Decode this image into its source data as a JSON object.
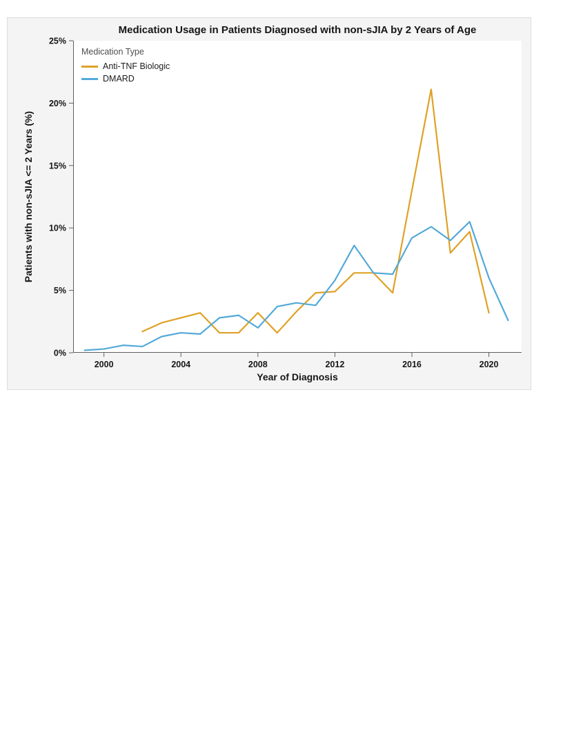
{
  "chart_data": {
    "type": "line",
    "title": "Medication Usage in Patients Diagnosed with non-sJIA by 2 Years of Age",
    "xlabel": "Year of Diagnosis",
    "ylabel": "Patients with non-sJIA <= 2 Years (%)",
    "legend_title": "Medication Type",
    "legend_position": "top-left-inside",
    "grid": false,
    "xlim": [
      1998.4,
      2021.7
    ],
    "ylim": [
      0,
      25
    ],
    "xticks": [
      2000,
      2004,
      2008,
      2012,
      2016,
      2020
    ],
    "yticks": [
      0,
      5,
      10,
      15,
      20,
      25
    ],
    "ytick_labels": [
      "0%",
      "5%",
      "10%",
      "15%",
      "20%",
      "25%"
    ],
    "series": [
      {
        "name": "Anti-TNF Biologic",
        "color": "#dfa126",
        "x": [
          2002,
          2003,
          2004,
          2005,
          2006,
          2007,
          2008,
          2009,
          2010,
          2011,
          2012,
          2013,
          2014,
          2015,
          2016,
          2017,
          2018,
          2019,
          2020
        ],
        "y": [
          1.7,
          2.4,
          2.8,
          3.2,
          1.6,
          1.6,
          3.2,
          1.6,
          3.3,
          4.8,
          4.9,
          6.4,
          6.4,
          4.8,
          13.0,
          21.1,
          8.0,
          9.7,
          3.2
        ]
      },
      {
        "name": "DMARD",
        "color": "#53a9d8",
        "x": [
          1999,
          2000,
          2001,
          2002,
          2003,
          2004,
          2005,
          2006,
          2007,
          2008,
          2009,
          2010,
          2011,
          2012,
          2013,
          2014,
          2015,
          2016,
          2017,
          2018,
          2019,
          2020,
          2021
        ],
        "y": [
          0.2,
          0.3,
          0.6,
          0.5,
          1.3,
          1.6,
          1.5,
          2.8,
          3.0,
          2.0,
          3.7,
          4.0,
          3.8,
          5.8,
          8.6,
          6.4,
          6.3,
          9.2,
          10.1,
          9.0,
          10.5,
          6.0,
          2.6
        ]
      }
    ]
  }
}
